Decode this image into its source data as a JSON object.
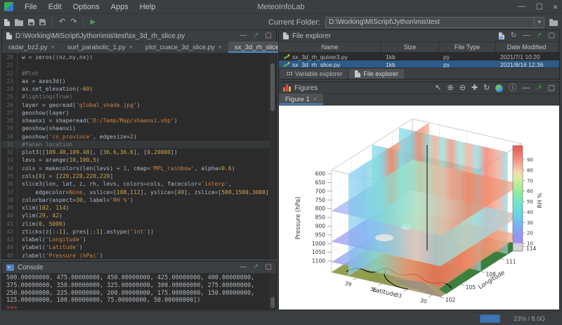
{
  "window": {
    "app_title": "MeteoInfoLab",
    "menus": [
      "File",
      "Edit",
      "Options",
      "Apps",
      "Help"
    ],
    "current_folder_label": "Current Folder:",
    "current_folder": "D:\\Working\\MIScript\\Jython\\mis\\test",
    "memory_usage": "23% / 8.0G"
  },
  "editor": {
    "title": "D:\\Working\\MIScript\\Jython\\mis\\test\\sx_3d_rh_slice.py",
    "tabs": [
      "radar_bz2.py",
      "surf_parabolic_1.py",
      "plot_cuace_3d_slice.py",
      "sx_3d_rh_slice.py"
    ],
    "active_tab": 3,
    "start_line": 20,
    "highlighted_line": 31,
    "lines": [
      "w = zeros((nz,ny,nx))",
      "",
      "#Plot",
      "ax = axes3d()",
      "ax.set_elevation(-60)",
      "#lighting(True)",
      "layer = georead('global_shade.jpg')",
      "geoshow(layer)",
      "shaanxi = shaperead('D:/Temp/Map/shaanxi.shp')",
      "geoshow(shaanxi)",
      "geoshow('cn_province', edgesize=2)",
      "#Yanan location",
      "plot3([109.48,109.48], [36.6,36.6], [0,20000])",
      "levs = arange(10,100,5)",
      "cols = makecolors(len(levs) + 1, cmap='MPL_rainbow', alpha=0.6)",
      "cols[0] = [220,220,220,220]",
      "slice3(lon, lat, z, rh, levs, colors=cols, facecolor='interp',",
      "    edgecolor=None, xslice=[108,112], yslice=[40], zslice=[500,1500,3000])",
      "colorbar(aspect=30, label='RH %')",
      "xlim(102, 114)",
      "ylim(29, 42)",
      "zlim(0, 5000)",
      "zticks(z[::1], pres[::1].astype('int'))",
      "xlabel('Longitude')",
      "ylabel('Latitude')",
      "zlabel('Pressure (hPa)')"
    ]
  },
  "console": {
    "title": "Console",
    "lines": [
      "500.00000000, 475.00000000, 450.00000000, 425.00000000, 400.00000000,",
      "375.00000000, 350.00000000, 325.00000000, 300.00000000, 275.00000000,",
      "250.00000000, 225.00000000, 200.00000000, 175.00000000, 150.00000000,",
      "125.00000000, 100.00000000, 75.00000000, 50.00000000])"
    ],
    "prompt": ">>>"
  },
  "file_explorer": {
    "title": "File explorer",
    "columns": [
      "Name",
      "Size",
      "File Type",
      "Date Modified"
    ],
    "rows": [
      {
        "name": "sx_3d_rh_quiver3.py",
        "size": "1kb",
        "type": "py",
        "date": "2021/7/1 10:20"
      },
      {
        "name": "sx_3d_rh_slice.py",
        "size": "1kb",
        "type": "py",
        "date": "2021/8/16 12:36"
      }
    ],
    "selected_row": 1,
    "bottom_tabs": [
      "Variable explorer",
      "File explorer"
    ],
    "active_bottom_tab": 1
  },
  "figures": {
    "title": "Figures",
    "tab_label": "Figure 1"
  },
  "chart_data": {
    "type": "3d-slice-plot",
    "xlabel": "Longitude",
    "ylabel": "Latitude",
    "zlabel": "Pressure (hPa)",
    "x_ticks": [
      102,
      105,
      108,
      111,
      114
    ],
    "y_ticks": [
      39,
      36,
      33,
      30
    ],
    "z_ticks": [
      600,
      650,
      700,
      750,
      800,
      850,
      900,
      950,
      1000,
      1050,
      1100
    ],
    "xlim": [
      102,
      114
    ],
    "ylim": [
      29,
      42
    ],
    "zlim": [
      0,
      5000
    ],
    "xslices": [
      108,
      112
    ],
    "yslices": [
      40
    ],
    "zslices": [
      500,
      1500,
      3000
    ],
    "line3d": {
      "lon": 109.48,
      "lat": 36.6,
      "z": [
        0,
        20000
      ]
    },
    "colorbar": {
      "label": "RH %",
      "ticks": [
        10,
        20,
        30,
        40,
        50,
        60,
        70,
        80,
        90
      ],
      "cmap": "MPL_rainbow"
    }
  },
  "colors": {
    "accent": "#4a88c7",
    "run_green": "#499c54",
    "selection_blue": "#2d5a88",
    "progress_blue": "#3f74b5"
  }
}
